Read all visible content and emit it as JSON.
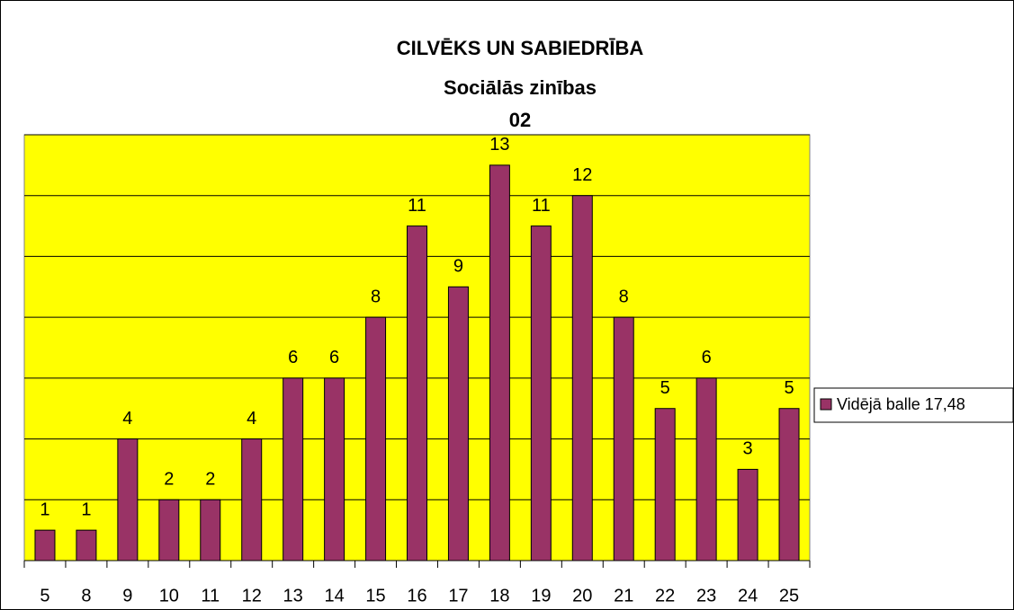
{
  "chart_data": {
    "type": "bar",
    "title": "CILVĒKS UN SABIEDRĪBA",
    "subtitle": "Sociālās zinības",
    "subtitle2": "02",
    "categories": [
      "5",
      "8",
      "9",
      "10",
      "11",
      "12",
      "13",
      "14",
      "15",
      "16",
      "17",
      "18",
      "19",
      "20",
      "21",
      "22",
      "23",
      "24",
      "25"
    ],
    "series": [
      {
        "name": "Vidējā balle 17,48",
        "color": "#993366",
        "values": [
          1,
          1,
          4,
          2,
          2,
          4,
          6,
          6,
          8,
          11,
          9,
          13,
          11,
          12,
          8,
          5,
          6,
          3,
          5
        ]
      }
    ],
    "ylim": [
      0,
      14
    ],
    "yticks": [
      0,
      2,
      4,
      6,
      8,
      10,
      12,
      14
    ],
    "grid": true,
    "plot_background": "#ffff00",
    "legend": "right"
  }
}
